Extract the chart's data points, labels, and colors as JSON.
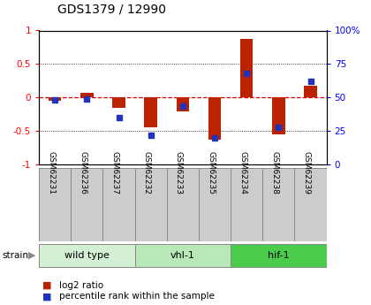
{
  "title": "GDS1379 / 12990",
  "samples": [
    "GSM62231",
    "GSM62236",
    "GSM62237",
    "GSM62232",
    "GSM62233",
    "GSM62235",
    "GSM62234",
    "GSM62238",
    "GSM62239"
  ],
  "log2_ratio": [
    -0.05,
    0.07,
    -0.15,
    -0.44,
    -0.2,
    -0.63,
    0.88,
    -0.55,
    0.18
  ],
  "percentile_rank": [
    48,
    49,
    35,
    22,
    44,
    20,
    68,
    28,
    62
  ],
  "groups": [
    {
      "label": "wild type",
      "start": 0,
      "end": 3,
      "color": "#d4f0d4"
    },
    {
      "label": "vhl-1",
      "start": 3,
      "end": 6,
      "color": "#b8e8b8"
    },
    {
      "label": "hif-1",
      "start": 6,
      "end": 9,
      "color": "#4ccc4c"
    }
  ],
  "bar_color": "#bb2200",
  "dot_color": "#2233bb",
  "zero_line_color": "#dd0000",
  "grid_color": "#555555",
  "sample_cell_color": "#cccccc",
  "ylim": [
    -1,
    1
  ],
  "yticks_left": [
    -1,
    -0.5,
    0,
    0.5,
    1
  ],
  "yticks_right": [
    0,
    25,
    50,
    75,
    100
  ],
  "plot_bg_color": "#ffffff"
}
